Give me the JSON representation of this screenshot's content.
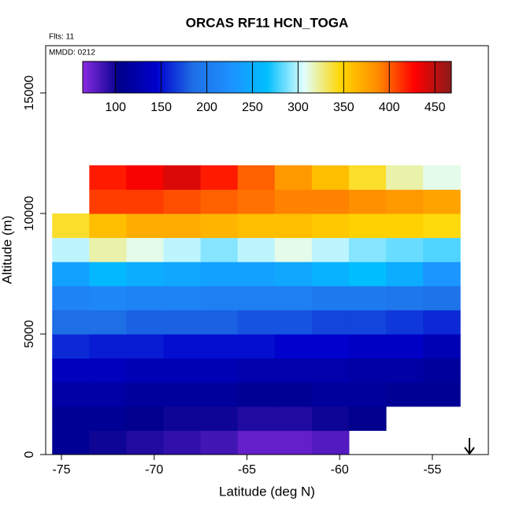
{
  "chart_data": {
    "type": "heatmap",
    "title": "ORCAS RF11 HCN_TOGA",
    "annotations": [
      "Flts: 11",
      "MMDD: 0212"
    ],
    "x_label": "Latitude (deg N)",
    "y_label": "Altitude (m)",
    "x_edges": [
      -75.5,
      -73.5,
      -71.5,
      -69.5,
      -67.5,
      -65.5,
      -63.5,
      -61.5,
      -59.5,
      -57.5,
      -55.5,
      -53.5
    ],
    "y_edges": [
      0,
      1000,
      2000,
      3000,
      4000,
      5000,
      6000,
      7000,
      8000,
      9000,
      10000,
      11000,
      12000
    ],
    "values": [
      [
        110,
        100,
        95,
        90,
        85,
        75,
        75,
        80,
        null,
        null,
        null
      ],
      [
        110,
        110,
        105,
        100,
        100,
        95,
        95,
        100,
        105,
        null,
        null
      ],
      [
        120,
        120,
        115,
        115,
        115,
        110,
        110,
        115,
        115,
        110,
        110
      ],
      [
        135,
        135,
        130,
        130,
        130,
        125,
        125,
        125,
        120,
        120,
        115
      ],
      [
        160,
        155,
        155,
        150,
        150,
        150,
        145,
        145,
        140,
        140,
        130
      ],
      [
        185,
        185,
        180,
        180,
        180,
        175,
        175,
        170,
        170,
        165,
        160
      ],
      [
        210,
        215,
        210,
        210,
        205,
        205,
        205,
        200,
        200,
        195,
        190
      ],
      [
        240,
        260,
        250,
        245,
        240,
        240,
        245,
        255,
        265,
        250,
        230
      ],
      [
        300,
        320,
        310,
        300,
        290,
        300,
        310,
        300,
        290,
        285,
        280
      ],
      [
        340,
        360,
        370,
        370,
        365,
        360,
        360,
        355,
        350,
        350,
        345
      ],
      [
        null,
        410,
        410,
        405,
        400,
        395,
        390,
        390,
        385,
        380,
        375
      ],
      [
        null,
        420,
        430,
        440,
        420,
        400,
        380,
        360,
        340,
        320,
        310
      ]
    ],
    "xlim": [
      -75.85,
      -51.98
    ],
    "xticks": [
      -75,
      -70,
      -65,
      -60,
      -55
    ],
    "ylim": [
      0,
      16960
    ],
    "yticks": [
      0,
      5000,
      10000,
      15000
    ],
    "zlim": [
      64,
      468
    ],
    "zticks": [
      100,
      150,
      200,
      250,
      300,
      350,
      400,
      450
    ],
    "colorscale": [
      "#8a2be2",
      "#00008b",
      "#0000cd",
      "#1e6fe6",
      "#1e90ff",
      "#00bfff",
      "#e0ffff",
      "#ffd700",
      "#ff8c00",
      "#ff0000",
      "#8b1a1a"
    ]
  }
}
